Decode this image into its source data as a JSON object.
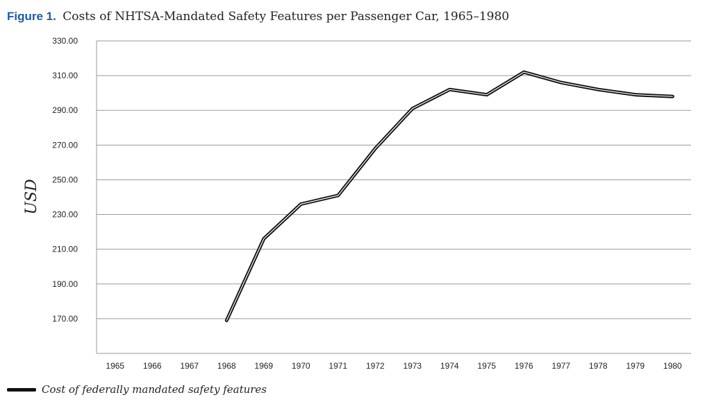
{
  "figure": {
    "label": "Figure 1.",
    "caption": "Costs of NHTSA-Mandated Safety Features per Passenger Car, 1965–1980"
  },
  "chart_data": {
    "type": "line",
    "title": "Figure 1. Costs of NHTSA-Mandated Safety Features per Passenger Car, 1965–1980",
    "xlabel": "",
    "ylabel": "USD",
    "categories": [
      "1965",
      "1966",
      "1967",
      "1968",
      "1969",
      "1970",
      "1971",
      "1972",
      "1973",
      "1974",
      "1975",
      "1976",
      "1977",
      "1978",
      "1979",
      "1980"
    ],
    "ylim": [
      150,
      330
    ],
    "yticks": [
      "170.00",
      "190.00",
      "210.00",
      "230.00",
      "250.00",
      "270.00",
      "290.00",
      "310.00",
      "330.00"
    ],
    "grid": true,
    "legend_position": "bottom-left",
    "series": [
      {
        "name": "Cost of federally mandated safety features",
        "color": "#111111",
        "values": [
          null,
          null,
          null,
          169,
          216,
          236,
          241,
          268,
          291,
          302,
          299,
          312,
          306,
          302,
          299,
          298
        ]
      }
    ]
  }
}
